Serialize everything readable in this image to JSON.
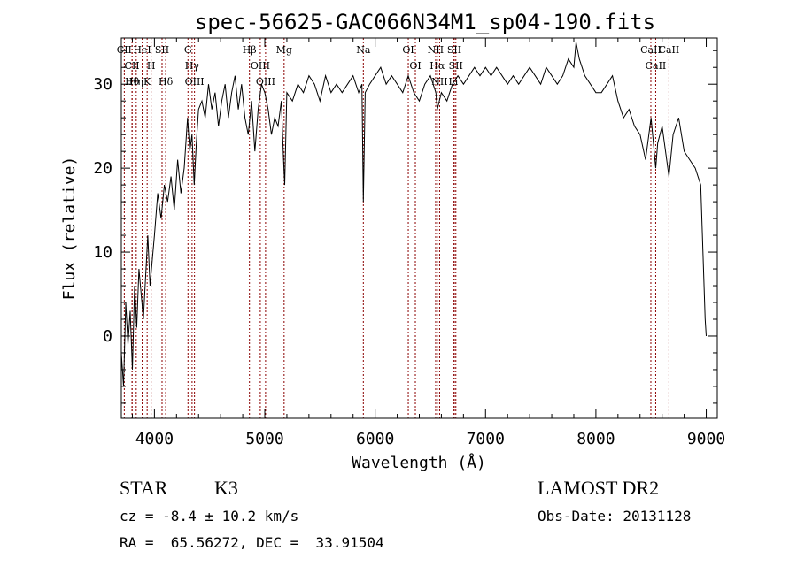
{
  "chart_data": {
    "type": "line",
    "title": "spec-56625-GAC066N34M1_sp04-190.fits",
    "xlabel": "Wavelength (Å)",
    "ylabel": "Flux (relative)",
    "xlim": [
      3700,
      9100
    ],
    "ylim": [
      -9.8,
      35.5
    ],
    "x_ticks": [
      4000,
      5000,
      6000,
      7000,
      8000,
      9000
    ],
    "y_ticks": [
      0,
      10,
      20,
      30
    ],
    "line_color": "#000000",
    "marker_color": "#8b0000",
    "series": [
      {
        "x": [
          3700,
          3720,
          3740,
          3760,
          3780,
          3800,
          3820,
          3840,
          3860,
          3880,
          3900,
          3920,
          3940,
          3960,
          3980,
          4000,
          4030,
          4060,
          4090,
          4120,
          4150,
          4180,
          4210,
          4240,
          4270,
          4300,
          4320,
          4340,
          4360,
          4380,
          4400,
          4430,
          4460,
          4490,
          4520,
          4550,
          4580,
          4610,
          4640,
          4670,
          4700,
          4730,
          4760,
          4790,
          4820,
          4850,
          4880,
          4910,
          4940,
          4970,
          5000,
          5030,
          5060,
          5090,
          5120,
          5150,
          5170,
          5180,
          5200,
          5250,
          5300,
          5350,
          5400,
          5450,
          5500,
          5550,
          5600,
          5650,
          5700,
          5750,
          5800,
          5850,
          5880,
          5893,
          5910,
          5950,
          6000,
          6050,
          6100,
          6150,
          6200,
          6250,
          6300,
          6350,
          6400,
          6450,
          6500,
          6550,
          6563,
          6600,
          6650,
          6700,
          6750,
          6800,
          6850,
          6900,
          6950,
          7000,
          7050,
          7100,
          7150,
          7200,
          7250,
          7300,
          7350,
          7400,
          7450,
          7500,
          7550,
          7600,
          7650,
          7700,
          7750,
          7800,
          7820,
          7850,
          7900,
          7950,
          8000,
          8050,
          8100,
          8150,
          8200,
          8250,
          8300,
          8350,
          8400,
          8450,
          8500,
          8542,
          8560,
          8600,
          8662,
          8700,
          8750,
          8800,
          8850,
          8900,
          8950,
          8990,
          9000
        ],
        "y": [
          -2,
          -6,
          4,
          -1,
          3,
          -4,
          6,
          1,
          8,
          5,
          2,
          7,
          12,
          6,
          9,
          12,
          17,
          14,
          18,
          16,
          19,
          15,
          21,
          17,
          20,
          26,
          22,
          24,
          18,
          23,
          27,
          28,
          26,
          30,
          27,
          29,
          25,
          28,
          30,
          26,
          29,
          31,
          27,
          30,
          26,
          24,
          28,
          22,
          27,
          30,
          29,
          27,
          24,
          26,
          25,
          28,
          21,
          18,
          29,
          28,
          30,
          29,
          31,
          30,
          28,
          31,
          29,
          30,
          29,
          30,
          31,
          29,
          30,
          16,
          29,
          30,
          31,
          32,
          30,
          31,
          30,
          29,
          31,
          29,
          28,
          30,
          31,
          29,
          27,
          29,
          28,
          30,
          31,
          30,
          31,
          32,
          31,
          32,
          31,
          32,
          31,
          30,
          31,
          30,
          31,
          32,
          31,
          30,
          32,
          31,
          30,
          31,
          33,
          32,
          35,
          33,
          31,
          30,
          29,
          29,
          30,
          31,
          28,
          26,
          27,
          25,
          24,
          21,
          26,
          20,
          23,
          25,
          19,
          24,
          26,
          22,
          21,
          20,
          18,
          2,
          0
        ]
      }
    ],
    "lines": [
      {
        "name": "Hθ",
        "x": 3798
      },
      {
        "name": "K",
        "x": 3934
      },
      {
        "name": "Hδ",
        "x": 4102
      },
      {
        "name": "OIII",
        "x": 4363
      },
      {
        "name": "CII",
        "x": 3727
      },
      {
        "name": "HeI",
        "x": 3889
      },
      {
        "name": "SII",
        "x": 4069
      },
      {
        "name": "Hγ",
        "x": 4341
      },
      {
        "name": "OIII",
        "x": 4959
      },
      {
        "name": "OIII",
        "x": 5007
      },
      {
        "name": "Na",
        "x": 5893
      },
      {
        "name": "OI",
        "x": 6300
      },
      {
        "name": "OI",
        "x": 6364
      },
      {
        "name": "Hα",
        "x": 6563
      },
      {
        "name": "SII",
        "x": 6717
      },
      {
        "name": "NII",
        "x": 6548
      },
      {
        "name": "Li",
        "x": 6708
      },
      {
        "name": "NII",
        "x": 6584
      },
      {
        "name": "SII",
        "x": 6731
      },
      {
        "name": "CII",
        "x": 3797
      },
      {
        "name": "Hη",
        "x": 3835
      },
      {
        "name": "H",
        "x": 3970
      },
      {
        "name": "G",
        "x": 4304
      },
      {
        "name": "Hβ",
        "x": 4861
      },
      {
        "name": "Mg",
        "x": 5175
      },
      {
        "name": "CaII",
        "x": 8542
      },
      {
        "name": "CaII",
        "x": 8498
      },
      {
        "name": "CaII",
        "x": 8662
      }
    ]
  },
  "info": {
    "class_label": "STAR",
    "subclass_label": "K3",
    "survey_label": "LAMOST DR2",
    "cz_text": "cz = -8.4 ± 10.2 km/s",
    "obsdate_text": "Obs-Date: 20131128",
    "radec_text": "RA =  65.56272, DEC =  33.91504"
  }
}
